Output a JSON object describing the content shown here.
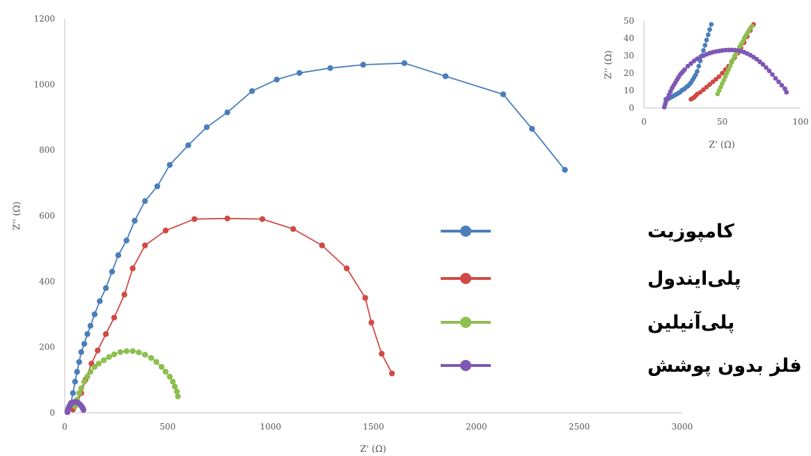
{
  "colors": {
    "composite": "#4a7ebb",
    "polyindole": "#d04a45",
    "polyaniline": "#8dbf4e",
    "bare_metal": "#7f57b4",
    "axis": "#bfbfbf",
    "text": "#555555"
  },
  "chart_data": [
    {
      "type": "line",
      "xlabel": "Z' (Ω)",
      "ylabel": "Z'' (Ω)",
      "xlim": [
        0,
        3000
      ],
      "ylim": [
        0,
        1200
      ],
      "xticks": [
        "0",
        "500",
        "1000",
        "1500",
        "2000",
        "2500",
        "3000"
      ],
      "yticks": [
        "0",
        "200",
        "400",
        "600",
        "800",
        "1000",
        "1200"
      ],
      "grid": false,
      "legend": "center-right",
      "series": [
        {
          "name": "کامپوزیت",
          "color": "#4a7ebb",
          "x": [
            30,
            40,
            50,
            60,
            70,
            80,
            95,
            110,
            125,
            145,
            170,
            200,
            230,
            260,
            300,
            340,
            390,
            450,
            510,
            600,
            690,
            790,
            910,
            1030,
            1140,
            1290,
            1450,
            1650,
            1850,
            2130,
            2270,
            2430
          ],
          "y": [
            30,
            60,
            95,
            125,
            155,
            185,
            210,
            240,
            265,
            300,
            340,
            380,
            430,
            480,
            525,
            585,
            645,
            690,
            755,
            815,
            870,
            915,
            980,
            1015,
            1035,
            1050,
            1060,
            1065,
            1025,
            970,
            865,
            740
          ]
        },
        {
          "name": "پلی‌ایندول",
          "color": "#d04a45",
          "x": [
            40,
            60,
            80,
            100,
            130,
            160,
            200,
            240,
            290,
            330,
            390,
            490,
            630,
            790,
            960,
            1110,
            1250,
            1370,
            1460,
            1490,
            1540,
            1590
          ],
          "y": [
            10,
            30,
            60,
            100,
            150,
            190,
            240,
            290,
            360,
            440,
            510,
            555,
            590,
            592,
            590,
            560,
            510,
            440,
            350,
            275,
            180,
            120
          ]
        },
        {
          "name": "پلی‌آنیلین",
          "color": "#8dbf4e",
          "x": [
            50,
            60,
            70,
            80,
            95,
            110,
            125,
            145,
            165,
            190,
            215,
            240,
            270,
            300,
            330,
            360,
            390,
            420,
            445,
            470,
            490,
            510,
            525,
            535,
            545,
            550
          ],
          "y": [
            20,
            40,
            60,
            75,
            95,
            110,
            125,
            140,
            150,
            160,
            170,
            178,
            185,
            188,
            188,
            184,
            177,
            167,
            155,
            140,
            125,
            110,
            95,
            80,
            65,
            50
          ]
        },
        {
          "name": "فلز بدون پوشش",
          "color": "#7f57b4",
          "x": [
            13,
            15,
            18,
            22,
            27,
            33,
            40,
            48,
            56,
            64,
            72,
            79,
            85,
            89,
            91
          ],
          "y": [
            2,
            8,
            14,
            20,
            25,
            29,
            32,
            33,
            33,
            31,
            27,
            22,
            17,
            12,
            9
          ]
        }
      ]
    },
    {
      "type": "line",
      "inset": true,
      "xlabel": "Z' (Ω)",
      "ylabel": "Z'' (Ω)",
      "xlim": [
        0,
        100
      ],
      "ylim": [
        0,
        50
      ],
      "xticks": [
        "0",
        "50",
        "100"
      ],
      "yticks": [
        "0",
        "10",
        "20",
        "30",
        "40",
        "50"
      ],
      "grid": false,
      "series": [
        {
          "color": "#4a7ebb",
          "x": [
            14,
            15,
            16,
            17,
            18,
            19,
            20,
            21,
            22,
            23,
            24,
            25,
            26,
            27,
            28,
            29,
            30,
            31,
            32,
            33,
            34,
            35,
            36,
            37,
            38,
            39,
            40,
            41,
            42,
            43
          ],
          "y": [
            5,
            5,
            5.5,
            6,
            6.5,
            7,
            7.5,
            8,
            8.5,
            9,
            10,
            10.5,
            11,
            12,
            12.5,
            13.5,
            14.5,
            16,
            17.5,
            19,
            21,
            24,
            27,
            30,
            33,
            36,
            39,
            42,
            45,
            48
          ]
        },
        {
          "color": "#d04a45",
          "x": [
            30,
            31,
            32,
            33,
            34,
            36,
            38,
            40,
            42,
            44,
            46,
            48,
            50,
            52,
            54,
            56,
            58,
            60,
            62,
            64,
            66,
            68,
            70
          ],
          "y": [
            5,
            5.5,
            6,
            7,
            8,
            9,
            10.5,
            12,
            13.5,
            15,
            16.5,
            18,
            20,
            22,
            24,
            26.5,
            29,
            31.5,
            34.5,
            37.5,
            41,
            44.5,
            48
          ]
        },
        {
          "color": "#8dbf4e",
          "x": [
            47,
            48,
            49,
            50,
            51,
            52,
            53,
            54,
            55,
            56,
            57,
            58,
            59,
            60,
            61,
            62,
            63,
            64,
            65,
            66,
            67,
            68,
            69
          ],
          "y": [
            8,
            10,
            12,
            14,
            16,
            18,
            20,
            22,
            24,
            26,
            28,
            30,
            31.5,
            33,
            35,
            36.5,
            38,
            40,
            41.5,
            43,
            44.5,
            46,
            47
          ]
        },
        {
          "color": "#7f57b4",
          "x": [
            13,
            13.5,
            14,
            15,
            16,
            17,
            18,
            19,
            20,
            21,
            22,
            23,
            24,
            25,
            26,
            28,
            30,
            32,
            34,
            36,
            38,
            40,
            42,
            44,
            46,
            48,
            50,
            52,
            54,
            56,
            58,
            60,
            62,
            64,
            66,
            68,
            70,
            72,
            74,
            76,
            78,
            80,
            82,
            84,
            86,
            88,
            90,
            91
          ],
          "y": [
            0.5,
            2,
            3.5,
            5.5,
            7.5,
            9.5,
            11.5,
            13,
            14.5,
            16,
            17.5,
            19,
            20,
            21,
            22,
            24,
            25.5,
            27,
            28.2,
            29.2,
            30,
            30.8,
            31.5,
            32,
            32.4,
            32.7,
            33,
            33.2,
            33.3,
            33.3,
            33.2,
            33,
            32.6,
            32,
            31.2,
            30.3,
            29.2,
            28,
            26.5,
            25,
            23.2,
            21.3,
            19.2,
            17,
            15,
            13,
            11,
            9
          ]
        }
      ]
    }
  ]
}
